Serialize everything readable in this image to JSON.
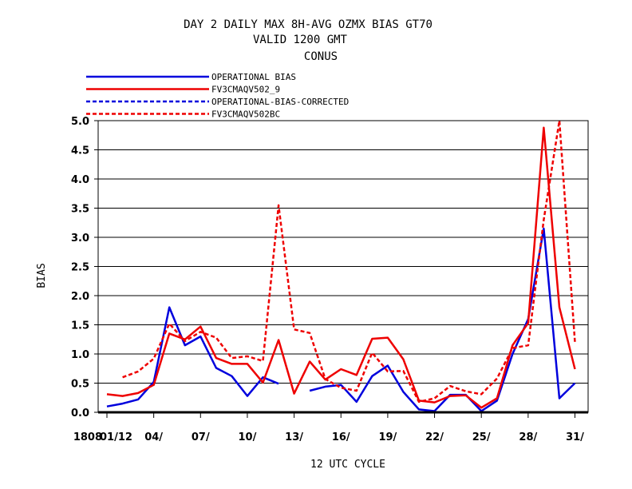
{
  "title_lines": [
    "DAY 2 DAILY MAX   8H-AVG OZMX BIAS GT70",
    "VALID 1200 GMT",
    "CONUS"
  ],
  "chart_data": {
    "type": "line",
    "xlabel": "12 UTC CYCLE",
    "ylabel": "BIAS",
    "ylim": [
      0.0,
      5.0
    ],
    "yticks": [
      "0.0",
      "0.5",
      "1.0",
      "1.5",
      "2.0",
      "2.5",
      "3.0",
      "3.5",
      "4.0",
      "4.5",
      "5.0"
    ],
    "grid": "horizontal",
    "legend_position": "top-left, above plot",
    "x": [
      1,
      2,
      3,
      4,
      5,
      6,
      7,
      8,
      9,
      10,
      11,
      12,
      13,
      14,
      15,
      16,
      17,
      18,
      19,
      20,
      21,
      22,
      23,
      24,
      25,
      26,
      27,
      28,
      29,
      30,
      31
    ],
    "xticks": [
      {
        "day": 0.85,
        "label": "1808"
      },
      {
        "day": 1,
        "label": "01/12"
      },
      {
        "day": 4,
        "label": "04/"
      },
      {
        "day": 7,
        "label": "07/"
      },
      {
        "day": 10,
        "label": "10/"
      },
      {
        "day": 13,
        "label": "13/"
      },
      {
        "day": 16,
        "label": "16/"
      },
      {
        "day": 19,
        "label": "19/"
      },
      {
        "day": 22,
        "label": "22/"
      },
      {
        "day": 25,
        "label": "25/"
      },
      {
        "day": 28,
        "label": "28/"
      },
      {
        "day": 31,
        "label": "31/"
      }
    ],
    "series": [
      {
        "name": "OPERATIONAL      BIAS",
        "color": "#0000dd",
        "dash": "solid",
        "values": [
          0.1,
          0.15,
          0.22,
          0.52,
          1.8,
          1.15,
          1.3,
          0.76,
          0.62,
          0.28,
          0.6,
          0.49,
          null,
          0.37,
          0.44,
          0.47,
          0.18,
          0.62,
          0.8,
          0.35,
          0.05,
          0.02,
          0.3,
          0.3,
          0.02,
          0.2,
          1.0,
          1.6,
          3.15,
          0.24,
          0.5
        ]
      },
      {
        "name": "FV3CMAQV502_9",
        "color": "#ee0000",
        "dash": "solid",
        "values": [
          0.31,
          0.28,
          0.33,
          0.47,
          1.35,
          1.25,
          1.47,
          0.93,
          0.83,
          0.83,
          0.51,
          1.24,
          0.32,
          0.87,
          0.56,
          0.74,
          0.64,
          1.26,
          1.28,
          0.91,
          0.2,
          0.17,
          0.28,
          0.29,
          0.08,
          0.24,
          1.15,
          1.53,
          4.88,
          1.8,
          0.74
        ]
      },
      {
        "name": "OPERATIONAL-BIAS-CORRECTED",
        "color": "#0000dd",
        "dash": "dashed",
        "values": [
          null,
          null,
          null,
          null,
          null,
          null,
          null,
          null,
          null,
          null,
          null,
          null,
          null,
          null,
          null,
          null,
          null,
          null,
          null,
          null,
          null,
          null,
          null,
          null,
          null,
          null,
          null,
          null,
          null,
          null,
          null
        ]
      },
      {
        "name": "FV3CMAQV502BC",
        "color": "#ee0000",
        "dash": "dashed",
        "values": [
          null,
          0.6,
          0.7,
          0.92,
          1.52,
          1.22,
          1.38,
          1.28,
          0.93,
          0.96,
          0.88,
          3.55,
          1.42,
          1.36,
          0.57,
          0.42,
          0.37,
          1.02,
          0.7,
          0.71,
          0.18,
          0.24,
          0.45,
          0.36,
          0.31,
          0.58,
          1.1,
          1.15,
          3.3,
          5.0,
          1.2
        ]
      }
    ]
  }
}
